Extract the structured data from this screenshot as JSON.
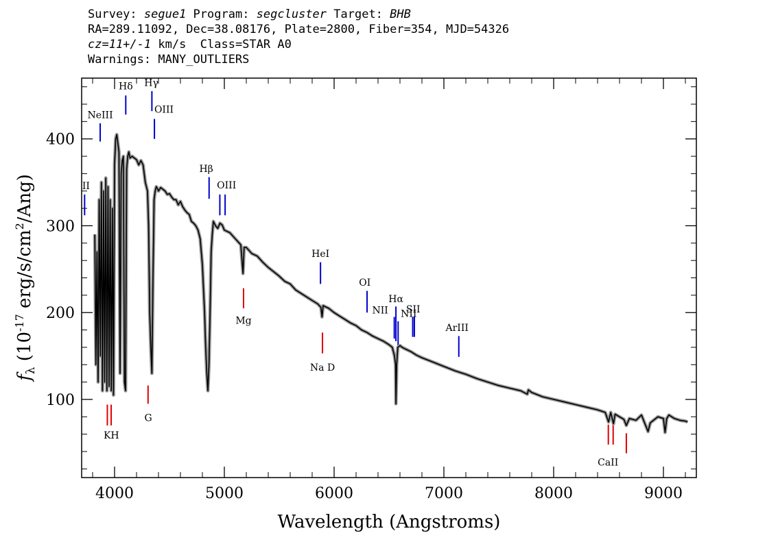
{
  "header": {
    "survey_label": "Survey: ",
    "survey": "segue1",
    "program_label": " Program: ",
    "program": "segcluster",
    "target_label": " Target: ",
    "target": "BHB",
    "line2": "RA=289.11092, Dec=38.08176, Plate=2800, Fiber=354, MJD=54326",
    "redshift": "cz=11+/-1",
    "line3_rest": " km/s  Class=STAR A0",
    "line4": "Warnings: MANY_OUTLIERS"
  },
  "chart_data": {
    "type": "line",
    "title": "",
    "xlabel": "Wavelength (Angstroms)",
    "ylabel": "f_λ (10^-17 erg/s/cm^2/Ang)",
    "xlim": [
      3700,
      9300
    ],
    "ylim": [
      10,
      470
    ],
    "xticks": [
      4000,
      5000,
      6000,
      7000,
      8000,
      9000
    ],
    "yticks": [
      100,
      200,
      300,
      400
    ],
    "grid": false,
    "colors": {
      "spectrum": "#000000",
      "error_band": "#9a9a9a",
      "emission_lines": "#0000cc",
      "absorption_lines": "#dd0000"
    },
    "series": [
      {
        "x": [
          3820,
          3830,
          3840,
          3850,
          3860,
          3870,
          3880,
          3890,
          3900,
          3910,
          3920,
          3930,
          3940,
          3950,
          3960,
          3970,
          3980,
          3990,
          4000,
          4010,
          4020,
          4030,
          4040,
          4050,
          4060,
          4070,
          4080,
          4090,
          4100,
          4110,
          4120,
          4130,
          4140,
          4160,
          4180,
          4200,
          4220,
          4240,
          4260,
          4280,
          4300,
          4310,
          4320,
          4330,
          4340,
          4350,
          4360,
          4370,
          4380,
          4390,
          4400,
          4420,
          4440,
          4460,
          4480,
          4500,
          4520,
          4540,
          4560,
          4580,
          4600,
          4620,
          4640,
          4660,
          4680,
          4700,
          4720,
          4740,
          4760,
          4780,
          4800,
          4820,
          4830,
          4840,
          4850,
          4860,
          4870,
          4880,
          4890,
          4900,
          4920,
          4940,
          4960,
          4980,
          5000,
          5050,
          5100,
          5150,
          5170,
          5180,
          5200,
          5250,
          5300,
          5350,
          5400,
          5450,
          5500,
          5550,
          5600,
          5650,
          5700,
          5750,
          5800,
          5850,
          5880,
          5890,
          5900,
          5950,
          6000,
          6050,
          6100,
          6150,
          6200,
          6250,
          6300,
          6350,
          6400,
          6450,
          6500,
          6530,
          6550,
          6560,
          6563,
          6570,
          6580,
          6600,
          6620,
          6650,
          6700,
          6750,
          6800,
          6900,
          7000,
          7100,
          7200,
          7300,
          7400,
          7500,
          7600,
          7700,
          7760,
          7770,
          7800,
          7900,
          8000,
          8100,
          8200,
          8300,
          8400,
          8470,
          8500,
          8520,
          8545,
          8560,
          8600,
          8640,
          8662,
          8690,
          8750,
          8800,
          8860,
          8880,
          8900,
          8950,
          9000,
          9015,
          9030,
          9050,
          9100,
          9150,
          9200,
          9220
        ],
        "y": [
          290,
          140,
          270,
          120,
          330,
          150,
          350,
          110,
          340,
          120,
          355,
          110,
          345,
          115,
          330,
          110,
          320,
          105,
          370,
          400,
          405,
          395,
          385,
          130,
          360,
          375,
          380,
          120,
          110,
          365,
          380,
          385,
          378,
          380,
          378,
          376,
          370,
          375,
          370,
          350,
          340,
          300,
          200,
          160,
          130,
          240,
          330,
          340,
          345,
          343,
          340,
          344,
          342,
          340,
          336,
          337,
          333,
          330,
          330,
          324,
          328,
          322,
          318,
          315,
          313,
          305,
          303,
          300,
          295,
          285,
          255,
          200,
          160,
          130,
          110,
          140,
          200,
          270,
          290,
          305,
          300,
          297,
          303,
          301,
          295,
          292,
          285,
          278,
          245,
          275,
          275,
          268,
          265,
          258,
          252,
          247,
          242,
          236,
          233,
          226,
          222,
          218,
          214,
          210,
          206,
          195,
          208,
          205,
          200,
          196,
          192,
          188,
          185,
          180,
          177,
          173,
          170,
          167,
          163,
          160,
          150,
          140,
          95,
          140,
          160,
          162,
          160,
          158,
          155,
          151,
          148,
          143,
          138,
          133,
          129,
          124,
          120,
          116,
          113,
          110,
          106,
          111,
          108,
          103,
          100,
          97,
          94,
          91,
          88,
          85,
          74,
          85,
          72,
          83,
          80,
          77,
          70,
          78,
          76,
          82,
          63,
          73,
          75,
          80,
          78,
          62,
          78,
          82,
          78,
          76,
          75,
          74
        ]
      }
    ],
    "line_markers": [
      {
        "label": "NeIII",
        "x": 3869,
        "y_range": [
          397,
          418
        ],
        "kind": "emission"
      },
      {
        "label": "Hδ",
        "x": 4102,
        "y_range": [
          428,
          450
        ],
        "kind": "emission"
      },
      {
        "label": "Hγ",
        "x": 4340,
        "y_range": [
          432,
          455
        ],
        "kind": "emission"
      },
      {
        "label": "OIII",
        "x": 4363,
        "y_range": [
          400,
          423
        ],
        "kind": "emission"
      },
      {
        "label": "OII",
        "x": 3727,
        "y_range": [
          312,
          336
        ],
        "kind": "emission"
      },
      {
        "label": "Hβ",
        "x": 4861,
        "y_range": [
          331,
          356
        ],
        "kind": "emission"
      },
      {
        "label": "OIII",
        "x": 4959,
        "y_range": [
          312,
          336
        ],
        "kind": "emission"
      },
      {
        "label": "OIII",
        "x": 5007,
        "y_range": [
          312,
          336
        ],
        "kind": "emission"
      },
      {
        "label": "HeI",
        "x": 5876,
        "y_range": [
          233,
          258
        ],
        "kind": "emission"
      },
      {
        "label": "OI",
        "x": 6300,
        "y_range": [
          200,
          225
        ],
        "kind": "emission"
      },
      {
        "label": "NII",
        "x": 6548,
        "y_range": [
          170,
          195
        ],
        "kind": "emission"
      },
      {
        "label": "Hα",
        "x": 6563,
        "y_range": [
          167,
          207
        ],
        "kind": "emission"
      },
      {
        "label": "NII",
        "x": 6583,
        "y_range": [
          159,
          190
        ],
        "kind": "emission"
      },
      {
        "label": "SII",
        "x": 6716,
        "y_range": [
          172,
          195
        ],
        "kind": "emission"
      },
      {
        "label": "SII",
        "x": 6731,
        "y_range": [
          172,
          195
        ],
        "kind": "emission"
      },
      {
        "label": "ArIII",
        "x": 7136,
        "y_range": [
          149,
          173
        ],
        "kind": "emission"
      },
      {
        "label": "K",
        "x": 3934,
        "y_range": [
          70,
          94
        ],
        "kind": "absorption"
      },
      {
        "label": "H",
        "x": 3969,
        "y_range": [
          70,
          94
        ],
        "kind": "absorption"
      },
      {
        "label": "G",
        "x": 4305,
        "y_range": [
          95,
          116
        ],
        "kind": "absorption"
      },
      {
        "label": "Mg",
        "x": 5175,
        "y_range": [
          205,
          228
        ],
        "kind": "absorption"
      },
      {
        "label": "Na D",
        "x": 5894,
        "y_range": [
          153,
          177
        ],
        "kind": "absorption"
      },
      {
        "label": "CaII",
        "x": 8498,
        "y_range": [
          48,
          71
        ],
        "kind": "absorption"
      },
      {
        "label": "CaII",
        "x": 8542,
        "y_range": [
          48,
          71
        ],
        "kind": "absorption"
      },
      {
        "label": "CaII",
        "x": 8662,
        "y_range": [
          38,
          61
        ],
        "kind": "absorption"
      }
    ],
    "marker_text": [
      {
        "text": "NeIII",
        "x": 3869,
        "y": 424,
        "anchor": "middle"
      },
      {
        "text": "Hδ",
        "x": 4102,
        "y": 457,
        "anchor": "middle"
      },
      {
        "text": "Hγ",
        "x": 4335,
        "y": 461,
        "anchor": "middle"
      },
      {
        "text": "OIII",
        "x": 4450,
        "y": 430,
        "anchor": "middle"
      },
      {
        "text": "II",
        "x": 3740,
        "y": 342,
        "anchor": "middle"
      },
      {
        "text": "Hβ",
        "x": 4835,
        "y": 362,
        "anchor": "middle"
      },
      {
        "text": "OIII",
        "x": 5020,
        "y": 343,
        "anchor": "middle"
      },
      {
        "text": "HeI",
        "x": 5876,
        "y": 264,
        "anchor": "middle"
      },
      {
        "text": "OI",
        "x": 6280,
        "y": 231,
        "anchor": "middle"
      },
      {
        "text": "NII",
        "x": 6420,
        "y": 199,
        "anchor": "middle"
      },
      {
        "text": "Hα",
        "x": 6563,
        "y": 212,
        "anchor": "middle"
      },
      {
        "text": "NII",
        "x": 6680,
        "y": 195,
        "anchor": "middle"
      },
      {
        "text": "SII",
        "x": 6720,
        "y": 200,
        "anchor": "middle"
      },
      {
        "text": "ArIII",
        "x": 7120,
        "y": 179,
        "anchor": "middle"
      },
      {
        "text": "K",
        "x": 3933,
        "y": 55,
        "anchor": "middle"
      },
      {
        "text": "H",
        "x": 4003,
        "y": 55,
        "anchor": "middle"
      },
      {
        "text": "G",
        "x": 4307,
        "y": 75,
        "anchor": "middle"
      },
      {
        "text": "Mg",
        "x": 5175,
        "y": 187,
        "anchor": "middle"
      },
      {
        "text": "Na  D",
        "x": 5894,
        "y": 133,
        "anchor": "middle"
      },
      {
        "text": "CaII",
        "x": 8495,
        "y": 24,
        "anchor": "middle"
      }
    ]
  }
}
